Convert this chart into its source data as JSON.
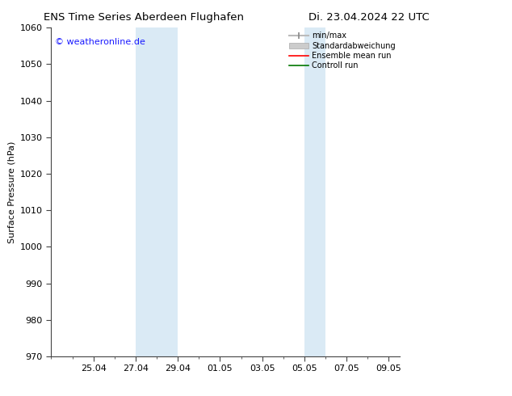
{
  "title_left": "ENS Time Series Aberdeen Flughafen",
  "title_right": "Di. 23.04.2024 22 UTC",
  "ylabel": "Surface Pressure (hPa)",
  "ylim": [
    970,
    1060
  ],
  "yticks": [
    970,
    980,
    990,
    1000,
    1010,
    1020,
    1030,
    1040,
    1050,
    1060
  ],
  "x_min": 0,
  "x_max": 16.5,
  "x_tick_labels": [
    "25.04",
    "27.04",
    "29.04",
    "01.05",
    "03.05",
    "05.05",
    "07.05",
    "09.05"
  ],
  "x_tick_positions": [
    2,
    4,
    6,
    8,
    10,
    12,
    14,
    16
  ],
  "shaded_regions": [
    {
      "start": 4.0,
      "end": 6.0
    },
    {
      "start": 12.0,
      "end": 13.0
    }
  ],
  "shaded_color": "#daeaf5",
  "background_color": "#ffffff",
  "watermark_text": "© weatheronline.de",
  "watermark_color": "#1a1aff",
  "legend_entries": [
    {
      "label": "min/max",
      "color": "#aaaaaa"
    },
    {
      "label": "Standardabweichung",
      "color": "#cccccc"
    },
    {
      "label": "Ensemble mean run",
      "color": "#ff0000"
    },
    {
      "label": "Controll run",
      "color": "#007700"
    }
  ],
  "font_size_title": 9.5,
  "font_size_axis_label": 8,
  "font_size_tick": 8,
  "font_size_legend": 7,
  "font_size_watermark": 8,
  "axis_line_color": "#444444",
  "tick_color": "#444444"
}
